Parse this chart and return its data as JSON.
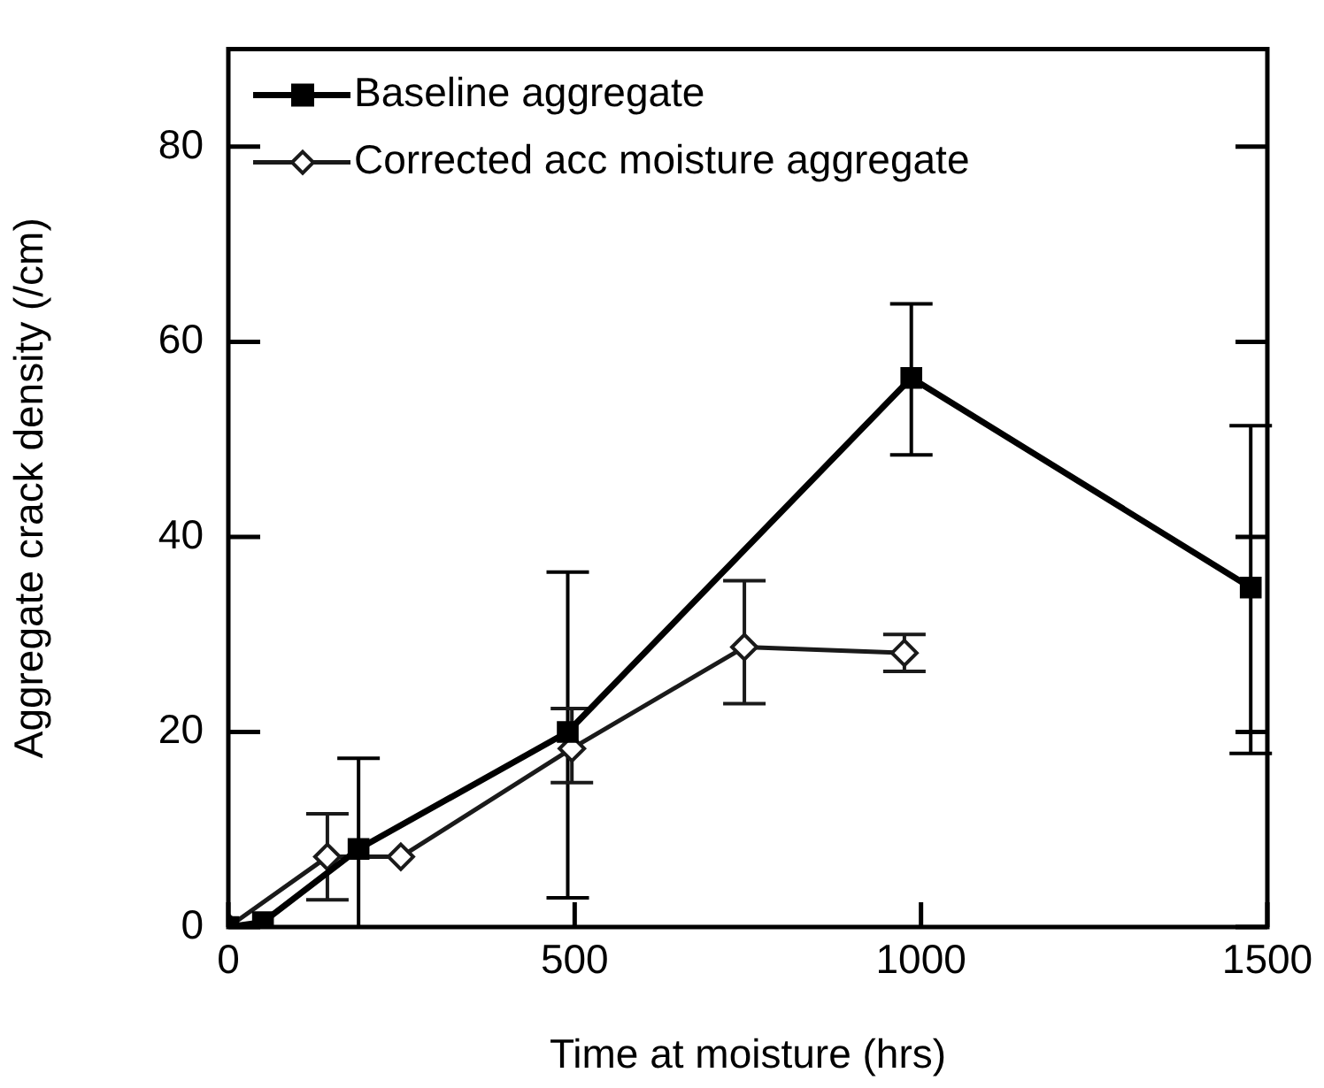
{
  "chart_data": {
    "type": "line",
    "xlabel": "Time at moisture (hrs)",
    "ylabel": "Aggregate crack density (/cm)",
    "xlim": [
      0,
      1500
    ],
    "xticks": [
      0,
      500,
      1000,
      1500
    ],
    "ylim": [
      0,
      90
    ],
    "yticks": [
      0,
      20,
      40,
      60,
      80
    ],
    "grid": false,
    "legend": "top left",
    "line_style": "solid",
    "series": [
      {
        "name": "Baseline aggregate",
        "color": "#000000",
        "marker": "square",
        "x": [
          0,
          50,
          188,
          490,
          986,
          1476
        ],
        "values": [
          0,
          0.5,
          8,
          20,
          56.3,
          34.8
        ],
        "errors": [
          null,
          null,
          [
            0,
            17.3
          ],
          [
            3,
            36.4
          ],
          [
            48.4,
            63.9
          ],
          [
            17.8,
            51.4
          ]
        ]
      },
      {
        "name": "Corrected acc moisture aggregate",
        "color": "#1a1a1a",
        "marker": "diamond",
        "x": [
          0,
          143,
          249,
          496,
          745,
          976
        ],
        "values": [
          0,
          7.2,
          7.2,
          18.3,
          28.7,
          28.1
        ],
        "errors": [
          null,
          [
            2.8,
            11.6
          ],
          null,
          [
            14.8,
            22.4
          ],
          [
            22.9,
            35.5
          ],
          [
            26.2,
            30
          ]
        ]
      }
    ]
  }
}
